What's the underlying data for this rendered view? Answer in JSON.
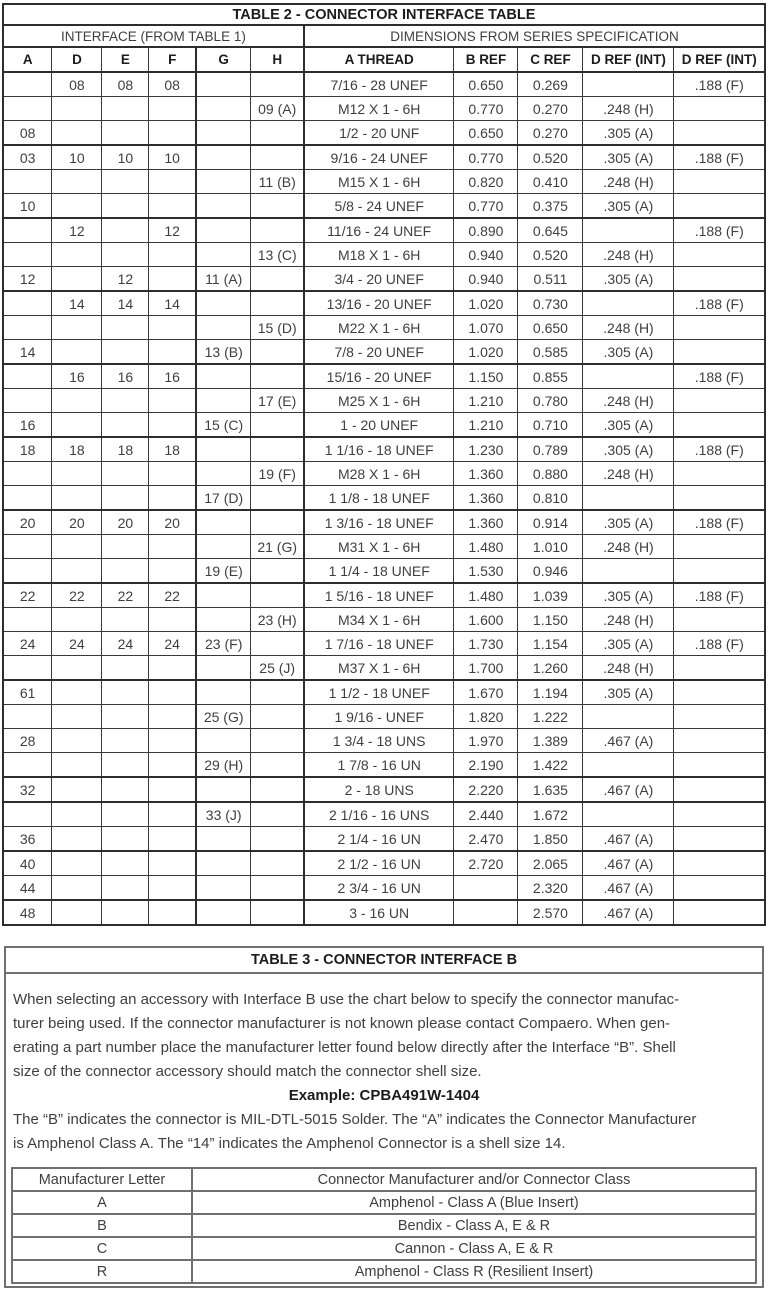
{
  "table2": {
    "title": "TABLE 2 - CONNECTOR INTERFACE TABLE",
    "section_headers": {
      "interface": "INTERFACE (FROM TABLE 1)",
      "dimensions": "DIMENSIONS FROM SERIES SPECIFICATION"
    },
    "columns": [
      "A",
      "D",
      "E",
      "F",
      "G",
      "H",
      "A THREAD",
      "B REF",
      "C REF",
      "D REF (INT)",
      "D REF (INT)"
    ],
    "rows": [
      [
        "",
        "08",
        "08",
        "08",
        "",
        "",
        "7/16 - 28 UNEF",
        "0.650",
        "0.269",
        "",
        ".188 (F)"
      ],
      [
        "",
        "",
        "",
        "",
        "",
        "09 (A)",
        "M12 X 1 - 6H",
        "0.770",
        "0.270",
        ".248 (H)",
        ""
      ],
      [
        "08",
        "",
        "",
        "",
        "",
        "",
        "1/2 - 20 UNF",
        "0.650",
        "0.270",
        ".305 (A)",
        ""
      ],
      [
        "03",
        "10",
        "10",
        "10",
        "",
        "",
        "9/16 - 24 UNEF",
        "0.770",
        "0.520",
        ".305 (A)",
        ".188 (F)"
      ],
      [
        "",
        "",
        "",
        "",
        "",
        "11 (B)",
        "M15 X 1 - 6H",
        "0.820",
        "0.410",
        ".248 (H)",
        ""
      ],
      [
        "10",
        "",
        "",
        "",
        "",
        "",
        "5/8 - 24 UNEF",
        "0.770",
        "0.375",
        ".305 (A)",
        ""
      ],
      [
        "",
        "12",
        "",
        "12",
        "",
        "",
        "11/16 - 24 UNEF",
        "0.890",
        "0.645",
        "",
        ".188 (F)"
      ],
      [
        "",
        "",
        "",
        "",
        "",
        "13 (C)",
        "M18 X 1 - 6H",
        "0.940",
        "0.520",
        ".248 (H)",
        ""
      ],
      [
        "12",
        "",
        "12",
        "",
        "11 (A)",
        "",
        "3/4 - 20 UNEF",
        "0.940",
        "0.511",
        ".305 (A)",
        ""
      ],
      [
        "",
        "14",
        "14",
        "14",
        "",
        "",
        "13/16 - 20 UNEF",
        "1.020",
        "0.730",
        "",
        ".188 (F)"
      ],
      [
        "",
        "",
        "",
        "",
        "",
        "15 (D)",
        "M22 X 1 - 6H",
        "1.070",
        "0.650",
        ".248 (H)",
        ""
      ],
      [
        "14",
        "",
        "",
        "",
        "13 (B)",
        "",
        "7/8 - 20 UNEF",
        "1.020",
        "0.585",
        ".305 (A)",
        ""
      ],
      [
        "",
        "16",
        "16",
        "16",
        "",
        "",
        "15/16 - 20 UNEF",
        "1.150",
        "0.855",
        "",
        ".188 (F)"
      ],
      [
        "",
        "",
        "",
        "",
        "",
        "17 (E)",
        "M25 X 1 - 6H",
        "1.210",
        "0.780",
        ".248 (H)",
        ""
      ],
      [
        "16",
        "",
        "",
        "",
        "15 (C)",
        "",
        "1 - 20 UNEF",
        "1.210",
        "0.710",
        ".305 (A)",
        ""
      ],
      [
        "18",
        "18",
        "18",
        "18",
        "",
        "",
        "1 1/16 - 18 UNEF",
        "1.230",
        "0.789",
        ".305 (A)",
        ".188 (F)"
      ],
      [
        "",
        "",
        "",
        "",
        "",
        "19 (F)",
        "M28 X 1 - 6H",
        "1.360",
        "0.880",
        ".248 (H)",
        ""
      ],
      [
        "",
        "",
        "",
        "",
        "17 (D)",
        "",
        "1 1/8 - 18 UNEF",
        "1.360",
        "0.810",
        "",
        ""
      ],
      [
        "20",
        "20",
        "20",
        "20",
        "",
        "",
        "1 3/16 - 18 UNEF",
        "1.360",
        "0.914",
        ".305 (A)",
        ".188 (F)"
      ],
      [
        "",
        "",
        "",
        "",
        "",
        "21 (G)",
        "M31 X 1 - 6H",
        "1.480",
        "1.010",
        ".248 (H)",
        ""
      ],
      [
        "",
        "",
        "",
        "",
        "19 (E)",
        "",
        "1 1/4 - 18 UNEF",
        "1.530",
        "0.946",
        "",
        ""
      ],
      [
        "22",
        "22",
        "22",
        "22",
        "",
        "",
        "1 5/16 - 18 UNEF",
        "1.480",
        "1.039",
        ".305 (A)",
        ".188 (F)"
      ],
      [
        "",
        "",
        "",
        "",
        "",
        "23 (H)",
        "M34 X 1 - 6H",
        "1.600",
        "1.150",
        ".248 (H)",
        ""
      ],
      [
        "24",
        "24",
        "24",
        "24",
        "23 (F)",
        "",
        "1 7/16 - 18 UNEF",
        "1.730",
        "1.154",
        ".305 (A)",
        ".188 (F)"
      ],
      [
        "",
        "",
        "",
        "",
        "",
        "25 (J)",
        "M37 X 1 - 6H",
        "1.700",
        "1.260",
        ".248 (H)",
        ""
      ],
      [
        "61",
        "",
        "",
        "",
        "",
        "",
        "1 1/2 - 18 UNEF",
        "1.670",
        "1.194",
        ".305 (A)",
        ""
      ],
      [
        "",
        "",
        "",
        "",
        "25 (G)",
        "",
        "1 9/16 - UNEF",
        "1.820",
        "1.222",
        "",
        ""
      ],
      [
        "28",
        "",
        "",
        "",
        "",
        "",
        "1 3/4 - 18 UNS",
        "1.970",
        "1.389",
        ".467 (A)",
        ""
      ],
      [
        "",
        "",
        "",
        "",
        "29 (H)",
        "",
        "1 7/8 - 16 UN",
        "2.190",
        "1.422",
        "",
        ""
      ],
      [
        "32",
        "",
        "",
        "",
        "",
        "",
        "2 - 18 UNS",
        "2.220",
        "1.635",
        ".467 (A)",
        ""
      ],
      [
        "",
        "",
        "",
        "",
        "33 (J)",
        "",
        "2 1/16 - 16 UNS",
        "2.440",
        "1.672",
        "",
        ""
      ],
      [
        "36",
        "",
        "",
        "",
        "",
        "",
        "2 1/4 - 16 UN",
        "2.470",
        "1.850",
        ".467 (A)",
        ""
      ],
      [
        "40",
        "",
        "",
        "",
        "",
        "",
        "2 1/2 - 16 UN",
        "2.720",
        "2.065",
        ".467 (A)",
        ""
      ],
      [
        "44",
        "",
        "",
        "",
        "",
        "",
        "2 3/4 - 16 UN",
        "",
        "2.320",
        ".467 (A)",
        ""
      ],
      [
        "48",
        "",
        "",
        "",
        "",
        "",
        "3 - 16 UN",
        "",
        "2.570",
        ".467 (A)",
        ""
      ]
    ]
  },
  "table3": {
    "title": "TABLE 3 - CONNECTOR INTERFACE B",
    "paragraph1_lines": [
      "When selecting an accessory with Interface B use the chart below to specify the connector manufac-",
      "turer being used. If the connector manufacturer is not known please contact Compaero. When gen-",
      "erating a part number place the manufacturer letter found below directly after the Interface “B”. Shell",
      "size of the connector accessory should match the connector shell size."
    ],
    "example": "Example: CPBA491W-1404",
    "paragraph2_lines": [
      "The “B” indicates the connector is MIL-DTL-5015 Solder. The “A” indicates the Connector Manufacturer",
      "is Amphenol Class A. The “14” indicates the Amphenol Connector is a shell size 14."
    ],
    "manufacturer_table": {
      "columns": [
        "Manufacturer Letter",
        "Connector Manufacturer and/or Connector Class"
      ],
      "rows": [
        [
          "A",
          "Amphenol - Class A (Blue Insert)"
        ],
        [
          "B",
          "Bendix - Class A, E & R"
        ],
        [
          "C",
          "Cannon - Class A, E & R"
        ],
        [
          "R",
          "Amphenol - Class R (Resilient Insert)"
        ]
      ]
    }
  }
}
